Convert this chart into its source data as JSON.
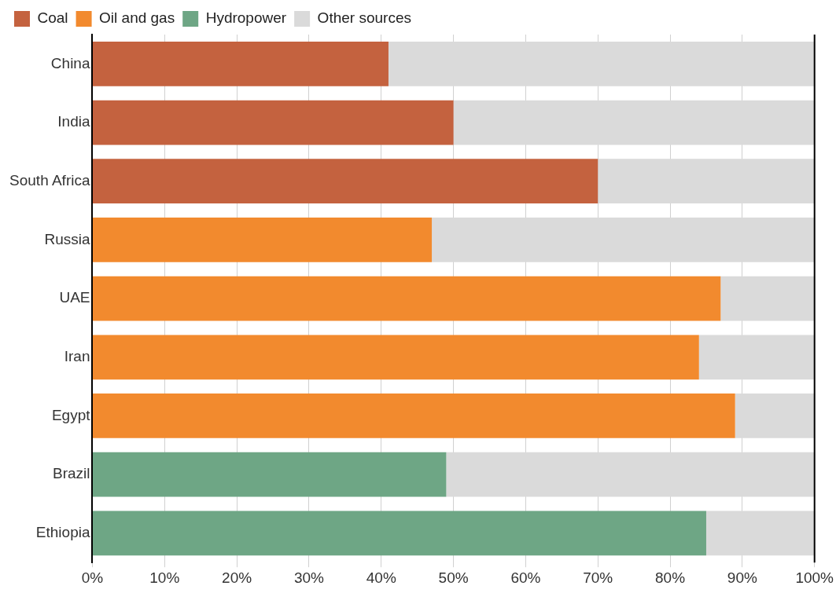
{
  "chart_data": {
    "type": "bar",
    "orientation": "horizontal",
    "stacked": true,
    "categories": [
      "China",
      "India",
      "South Africa",
      "Russia",
      "UAE",
      "Iran",
      "Egypt",
      "Brazil",
      "Ethiopia"
    ],
    "series": [
      {
        "name": "Coal",
        "color": "#c4623f",
        "values": [
          41,
          50,
          70,
          null,
          null,
          null,
          null,
          null,
          null
        ]
      },
      {
        "name": "Oil and gas",
        "color": "#f28a2e",
        "values": [
          null,
          null,
          null,
          47,
          87,
          84,
          89,
          null,
          null
        ]
      },
      {
        "name": "Hydropower",
        "color": "#6ea685",
        "values": [
          null,
          null,
          null,
          null,
          null,
          null,
          null,
          49,
          85
        ]
      },
      {
        "name": "Other sources",
        "color": "#dadada",
        "values": [
          59,
          50,
          30,
          53,
          13,
          16,
          11,
          51,
          15
        ]
      }
    ],
    "xlim": [
      0,
      100
    ],
    "xticks": [
      {
        "value": 0,
        "label": "0%"
      },
      {
        "value": 10,
        "label": "10%"
      },
      {
        "value": 20,
        "label": "20%"
      },
      {
        "value": 30,
        "label": "30%"
      },
      {
        "value": 40,
        "label": "40%"
      },
      {
        "value": 50,
        "label": "50%"
      },
      {
        "value": 60,
        "label": "60%"
      },
      {
        "value": 70,
        "label": "70%"
      },
      {
        "value": 80,
        "label": "80%"
      },
      {
        "value": 90,
        "label": "90%"
      },
      {
        "value": 100,
        "label": "100%"
      }
    ],
    "grid": "x",
    "legend": "top left"
  }
}
